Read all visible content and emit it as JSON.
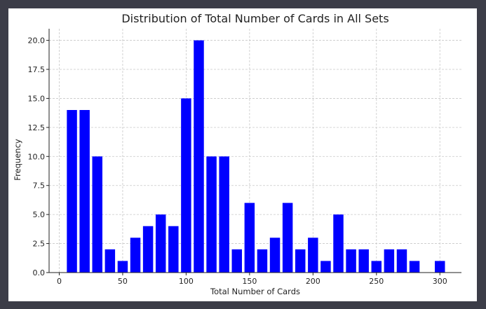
{
  "chart_data": {
    "type": "bar",
    "title": "Distribution of Total Number of Cards in All Sets",
    "xlabel": "Total Number of Cards",
    "ylabel": "Frequency",
    "x": [
      10,
      20,
      30,
      40,
      50,
      60,
      70,
      80,
      90,
      100,
      110,
      120,
      130,
      140,
      150,
      160,
      170,
      180,
      190,
      200,
      210,
      220,
      230,
      240,
      250,
      260,
      270,
      280,
      300
    ],
    "values": [
      14,
      14,
      10,
      2,
      1,
      3,
      4,
      5,
      4,
      15,
      20,
      10,
      10,
      2,
      6,
      2,
      3,
      6,
      2,
      3,
      1,
      5,
      2,
      2,
      1,
      2,
      2,
      1,
      1
    ],
    "bin_width": 10,
    "xlim": [
      -8,
      317
    ],
    "ylim": [
      0,
      21
    ],
    "xticks": [
      0,
      50,
      100,
      150,
      200,
      250,
      300
    ],
    "yticks": [
      0.0,
      2.5,
      5.0,
      7.5,
      10.0,
      12.5,
      15.0,
      17.5,
      20.0
    ],
    "xtick_labels": [
      "0",
      "50",
      "100",
      "150",
      "200",
      "250",
      "300"
    ],
    "ytick_labels": [
      "0.0",
      "2.5",
      "5.0",
      "7.5",
      "10.0",
      "12.5",
      "15.0",
      "17.5",
      "20.0"
    ],
    "grid": true,
    "bar_color": "#0000ff",
    "grid_color": "#c8c8c8"
  }
}
